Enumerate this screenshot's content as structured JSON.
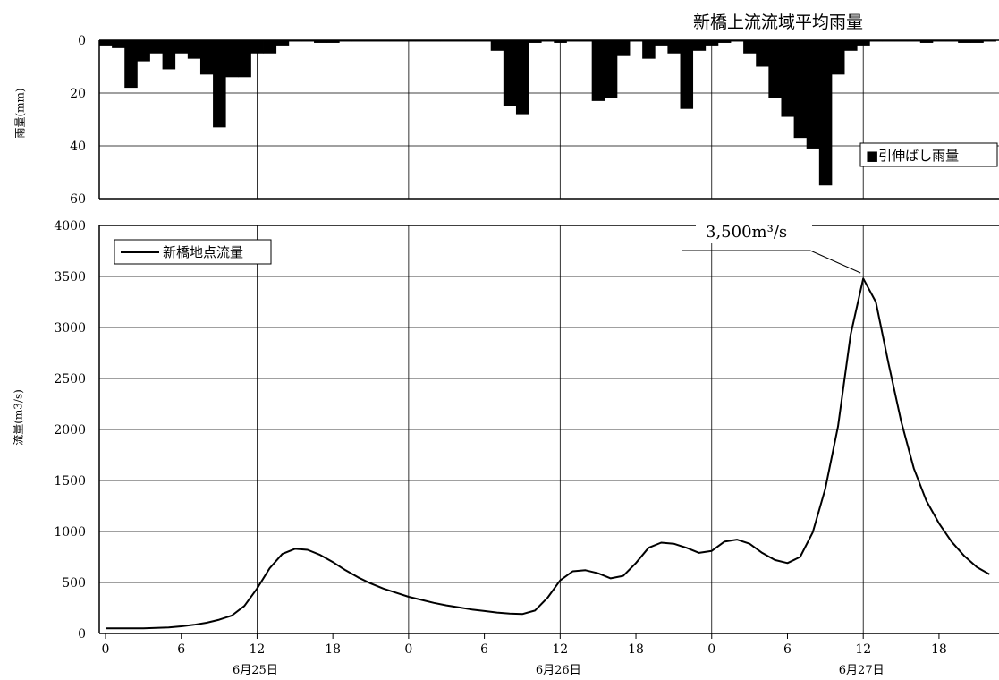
{
  "rain_title": "新橋上流流域平均雨量",
  "rain_ylabel": "雨量(mm)",
  "flow_ylabel": "流量(m3/s)",
  "rain_legend": "■引伸ばし雨量",
  "flow_legend": "新橋地点流量",
  "peak_label": "3,500m³/s",
  "x_tick_labels": [
    "0",
    "6",
    "12",
    "18",
    "0",
    "6",
    "12",
    "18",
    "0",
    "6",
    "12",
    "18"
  ],
  "date_labels": [
    "6月25日",
    "6月26日",
    "6月27日"
  ],
  "chart_data": [
    {
      "type": "bar",
      "title": "新橋上流流域平均雨量",
      "ylabel": "雨量(mm)",
      "ylim": [
        0,
        60
      ],
      "y_inverted": true,
      "y_ticks": [
        0,
        20,
        40,
        60
      ],
      "x_unit": "hour from 6月25日 0時",
      "xlim": [
        0,
        71
      ],
      "legend": {
        "entries": [
          "引伸ばし雨量"
        ],
        "position": "right"
      },
      "x": [
        0,
        1,
        2,
        3,
        4,
        5,
        6,
        7,
        8,
        9,
        10,
        11,
        12,
        13,
        14,
        15,
        16,
        17,
        18,
        19,
        20,
        21,
        22,
        23,
        24,
        25,
        26,
        27,
        28,
        29,
        30,
        31,
        32,
        33,
        34,
        35,
        36,
        37,
        38,
        39,
        40,
        41,
        42,
        43,
        44,
        45,
        46,
        47,
        48,
        49,
        50,
        51,
        52,
        53,
        54,
        55,
        56,
        57,
        58,
        59,
        60,
        61,
        62,
        63,
        64,
        65,
        66,
        67,
        68,
        69,
        70
      ],
      "series": [
        {
          "name": "引伸ばし雨量",
          "values": [
            2,
            3,
            18,
            8,
            5,
            11,
            5,
            7,
            13,
            33,
            14,
            14,
            5,
            5,
            2,
            0.5,
            0.5,
            1,
            1,
            0.5,
            0.5,
            0.5,
            0.5,
            0.5,
            0.5,
            0.5,
            0.5,
            0.5,
            0.5,
            0.5,
            0.5,
            4,
            25,
            28,
            1,
            0.5,
            1,
            0.5,
            0.5,
            23,
            22,
            6,
            0.5,
            7,
            2,
            5,
            26,
            4,
            2,
            1,
            0.5,
            5,
            10,
            22,
            29,
            37,
            41,
            55,
            13,
            4,
            2,
            0.5,
            0.5,
            0.5,
            0.5,
            1,
            0.5,
            0.5,
            1,
            1,
            0.5
          ]
        }
      ]
    },
    {
      "type": "line",
      "ylabel": "流量(m3/s)",
      "ylim": [
        0,
        4000
      ],
      "y_ticks": [
        0,
        500,
        1000,
        1500,
        2000,
        2500,
        3000,
        3500,
        4000
      ],
      "x_unit": "hour from 6月25日 0時",
      "xlim": [
        0,
        71
      ],
      "x_ticks": [
        0,
        6,
        12,
        18,
        24,
        30,
        36,
        42,
        48,
        54,
        60,
        66
      ],
      "grid": true,
      "legend": {
        "entries": [
          "新橋地点流量"
        ],
        "position": "top-left"
      },
      "annotations": [
        {
          "text": "3,500m³/s",
          "x": 60,
          "y": 3500
        }
      ],
      "series": [
        {
          "name": "新橋地点流量",
          "x": [
            0,
            1,
            2,
            3,
            4,
            5,
            6,
            7,
            8,
            9,
            10,
            11,
            12,
            13,
            14,
            15,
            16,
            17,
            18,
            19,
            20,
            21,
            22,
            23,
            24,
            25,
            26,
            27,
            28,
            29,
            30,
            31,
            32,
            33,
            34,
            35,
            36,
            37,
            38,
            39,
            40,
            41,
            42,
            43,
            44,
            45,
            46,
            47,
            48,
            49,
            50,
            51,
            52,
            53,
            54,
            55,
            56,
            57,
            58,
            59,
            60,
            61,
            62,
            63,
            64,
            65,
            66,
            67,
            68,
            69,
            70
          ],
          "values": [
            50,
            50,
            50,
            50,
            55,
            60,
            70,
            85,
            105,
            135,
            175,
            270,
            440,
            640,
            780,
            830,
            820,
            770,
            700,
            620,
            550,
            490,
            440,
            400,
            360,
            330,
            300,
            275,
            255,
            235,
            220,
            205,
            195,
            190,
            225,
            350,
            520,
            610,
            620,
            590,
            540,
            565,
            690,
            840,
            890,
            880,
            840,
            790,
            810,
            900,
            920,
            880,
            790,
            720,
            690,
            750,
            990,
            1420,
            2030,
            2930,
            3480,
            3250,
            2650,
            2080,
            1620,
            1300,
            1080,
            900,
            760,
            650,
            580
          ]
        }
      ]
    }
  ]
}
